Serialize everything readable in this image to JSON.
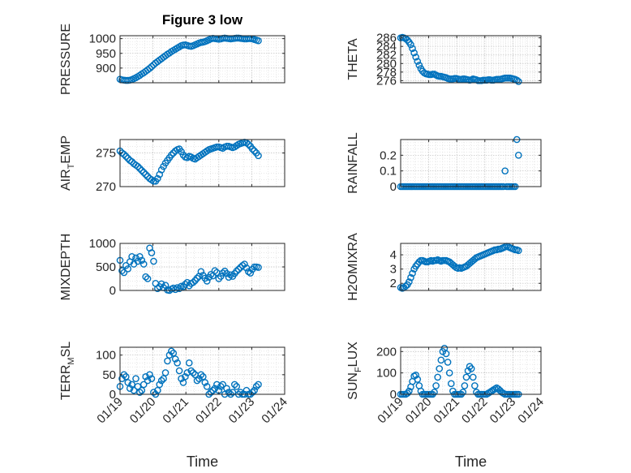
{
  "figure_title": "Figure 3 low",
  "chart_data": [
    {
      "type": "scatter",
      "id": "pressure",
      "title": "Figure 3 low",
      "ylabel": "PRESSURE",
      "ylabel_sub": "",
      "ylabel_tail": "",
      "xlim": [
        0,
        5
      ],
      "ylim": [
        850,
        1010
      ],
      "yticks": [
        900,
        950,
        1000
      ],
      "x": [
        0.0,
        0.06,
        0.12,
        0.18,
        0.24,
        0.3,
        0.36,
        0.42,
        0.48,
        0.54,
        0.6,
        0.66,
        0.72,
        0.78,
        0.84,
        0.9,
        0.96,
        1.02,
        1.08,
        1.14,
        1.2,
        1.26,
        1.32,
        1.38,
        1.44,
        1.5,
        1.56,
        1.62,
        1.68,
        1.74,
        1.8,
        1.86,
        1.92,
        1.98,
        2.04,
        2.1,
        2.16,
        2.22,
        2.28,
        2.34,
        2.4,
        2.46,
        2.52,
        2.58,
        2.64,
        2.7,
        2.76,
        2.82,
        2.88,
        2.94,
        3.0,
        3.06,
        3.12,
        3.18,
        3.24,
        3.3,
        3.36,
        3.42,
        3.48,
        3.54,
        3.6,
        3.66,
        3.72,
        3.78,
        3.84,
        3.9,
        3.96,
        4.02,
        4.08,
        4.14,
        4.2
      ],
      "y": [
        862,
        860,
        859,
        858,
        858,
        859,
        861,
        864,
        867,
        871,
        875,
        880,
        884,
        889,
        894,
        899,
        905,
        911,
        917,
        922,
        927,
        932,
        937,
        942,
        947,
        951,
        956,
        960,
        964,
        968,
        972,
        976,
        978,
        979,
        977,
        975,
        974,
        976,
        979,
        982,
        985,
        987,
        988,
        990,
        993,
        996,
        999,
        1001,
        1000,
        999,
        998,
        999,
        1001,
        1002,
        1001,
        1000,
        999,
        1000,
        1001,
        1002,
        1002,
        1001,
        1000,
        999,
        999,
        1000,
        1000,
        999,
        997,
        995,
        993
      ]
    },
    {
      "type": "scatter",
      "id": "theta",
      "title": "",
      "ylabel": "THETA",
      "ylabel_sub": "",
      "ylabel_tail": "",
      "xlim": [
        0,
        5
      ],
      "ylim": [
        275.5,
        286.5
      ],
      "yticks": [
        276,
        278,
        280,
        282,
        284,
        286
      ],
      "x": [
        0.0,
        0.06,
        0.12,
        0.18,
        0.24,
        0.3,
        0.36,
        0.42,
        0.48,
        0.54,
        0.6,
        0.66,
        0.72,
        0.78,
        0.84,
        0.9,
        0.96,
        1.02,
        1.08,
        1.14,
        1.2,
        1.26,
        1.32,
        1.38,
        1.44,
        1.5,
        1.56,
        1.62,
        1.68,
        1.74,
        1.8,
        1.86,
        1.92,
        1.98,
        2.04,
        2.1,
        2.16,
        2.22,
        2.28,
        2.34,
        2.4,
        2.46,
        2.52,
        2.58,
        2.64,
        2.7,
        2.76,
        2.82,
        2.88,
        2.94,
        3.0,
        3.06,
        3.12,
        3.18,
        3.24,
        3.3,
        3.36,
        3.42,
        3.48,
        3.54,
        3.6,
        3.66,
        3.72,
        3.78,
        3.84,
        3.9,
        3.96,
        4.02,
        4.08,
        4.14,
        4.2
      ],
      "y": [
        286.0,
        286.1,
        286.0,
        285.8,
        285.5,
        285.0,
        284.4,
        283.5,
        282.5,
        281.5,
        280.5,
        279.6,
        278.8,
        278.2,
        277.8,
        277.6,
        277.5,
        277.4,
        277.4,
        277.5,
        277.5,
        277.3,
        277.1,
        277.0,
        277.0,
        276.9,
        276.8,
        276.7,
        276.5,
        276.4,
        276.4,
        276.4,
        276.5,
        276.5,
        276.4,
        276.3,
        276.3,
        276.4,
        276.4,
        276.3,
        276.2,
        276.1,
        276.2,
        276.4,
        276.3,
        276.2,
        276.0,
        276.0,
        276.0,
        276.1,
        276.1,
        276.1,
        276.2,
        276.2,
        276.1,
        276.1,
        276.2,
        276.3,
        276.3,
        276.3,
        276.4,
        276.5,
        276.6,
        276.6,
        276.6,
        276.6,
        276.5,
        276.4,
        276.3,
        276.1,
        275.8
      ]
    },
    {
      "type": "scatter",
      "id": "air_temp",
      "title": "",
      "ylabel": "AIR",
      "ylabel_sub": "T",
      "ylabel_tail": "EMP",
      "xlim": [
        0,
        5
      ],
      "ylim": [
        270,
        277
      ],
      "yticks": [
        270,
        275
      ],
      "x": [
        0.0,
        0.06,
        0.12,
        0.18,
        0.24,
        0.3,
        0.36,
        0.42,
        0.48,
        0.54,
        0.6,
        0.66,
        0.72,
        0.78,
        0.84,
        0.9,
        0.96,
        1.02,
        1.08,
        1.14,
        1.2,
        1.26,
        1.32,
        1.38,
        1.44,
        1.5,
        1.56,
        1.62,
        1.68,
        1.74,
        1.8,
        1.86,
        1.92,
        1.98,
        2.04,
        2.1,
        2.16,
        2.22,
        2.28,
        2.34,
        2.4,
        2.46,
        2.52,
        2.58,
        2.64,
        2.7,
        2.76,
        2.82,
        2.88,
        2.94,
        3.0,
        3.06,
        3.12,
        3.18,
        3.24,
        3.3,
        3.36,
        3.42,
        3.48,
        3.54,
        3.6,
        3.66,
        3.72,
        3.78,
        3.84,
        3.9,
        3.96,
        4.02,
        4.08,
        4.14,
        4.2
      ],
      "y": [
        275.3,
        275.0,
        274.8,
        274.5,
        274.2,
        273.9,
        273.7,
        273.4,
        273.2,
        273.0,
        272.7,
        272.4,
        272.1,
        271.8,
        271.5,
        271.2,
        271.0,
        270.8,
        270.8,
        271.2,
        271.8,
        272.5,
        273.0,
        273.5,
        273.9,
        274.3,
        274.7,
        275.0,
        275.3,
        275.5,
        275.6,
        275.2,
        274.7,
        274.4,
        274.3,
        274.5,
        274.4,
        274.2,
        274.1,
        274.3,
        274.5,
        274.7,
        274.9,
        275.1,
        275.3,
        275.5,
        275.6,
        275.7,
        275.8,
        275.9,
        275.9,
        275.8,
        275.7,
        275.9,
        276.0,
        276.0,
        275.9,
        275.8,
        275.9,
        276.1,
        276.3,
        276.4,
        276.5,
        276.6,
        276.5,
        276.3,
        276.0,
        275.6,
        275.3,
        275.0,
        274.6
      ]
    },
    {
      "type": "scatter",
      "id": "rainfall",
      "title": "",
      "ylabel": "RAINFALL",
      "ylabel_sub": "",
      "ylabel_tail": "",
      "xlim": [
        0,
        5
      ],
      "ylim": [
        0,
        0.3
      ],
      "yticks": [
        0,
        0.1,
        0.2
      ],
      "x": [
        0.0,
        0.06,
        0.12,
        0.18,
        0.24,
        0.3,
        0.36,
        0.42,
        0.48,
        0.54,
        0.6,
        0.66,
        0.72,
        0.78,
        0.84,
        0.9,
        0.96,
        1.02,
        1.08,
        1.14,
        1.2,
        1.26,
        1.32,
        1.38,
        1.44,
        1.5,
        1.56,
        1.62,
        1.68,
        1.74,
        1.8,
        1.86,
        1.92,
        1.98,
        2.04,
        2.1,
        2.16,
        2.22,
        2.28,
        2.34,
        2.4,
        2.46,
        2.52,
        2.58,
        2.64,
        2.7,
        2.76,
        2.82,
        2.88,
        2.94,
        3.0,
        3.06,
        3.12,
        3.18,
        3.24,
        3.3,
        3.36,
        3.42,
        3.48,
        3.54,
        3.6,
        3.66,
        3.72,
        3.78,
        3.84,
        3.9,
        3.96,
        4.02,
        4.08,
        4.14,
        4.2
      ],
      "y": [
        0,
        0,
        0,
        0,
        0,
        0,
        0,
        0,
        0,
        0,
        0,
        0,
        0,
        0,
        0,
        0,
        0,
        0,
        0,
        0,
        0,
        0,
        0,
        0,
        0,
        0,
        0,
        0,
        0,
        0,
        0,
        0,
        0,
        0,
        0,
        0,
        0,
        0,
        0,
        0,
        0,
        0,
        0,
        0,
        0,
        0,
        0,
        0,
        0,
        0,
        0,
        0,
        0,
        0,
        0,
        0,
        0,
        0,
        0,
        0,
        0,
        0,
        0.1,
        0,
        0,
        0,
        0,
        0,
        0,
        0.3,
        0.2
      ]
    },
    {
      "type": "scatter",
      "id": "mixdepth",
      "title": "",
      "ylabel": "MIXDEPTH",
      "ylabel_sub": "",
      "ylabel_tail": "",
      "xlim": [
        0,
        5
      ],
      "ylim": [
        0,
        1000
      ],
      "yticks": [
        0,
        500,
        1000
      ],
      "x": [
        0.0,
        0.06,
        0.12,
        0.18,
        0.24,
        0.3,
        0.36,
        0.42,
        0.48,
        0.54,
        0.6,
        0.66,
        0.72,
        0.78,
        0.84,
        0.9,
        0.96,
        1.02,
        1.08,
        1.14,
        1.2,
        1.26,
        1.32,
        1.38,
        1.44,
        1.5,
        1.56,
        1.62,
        1.68,
        1.74,
        1.8,
        1.86,
        1.92,
        1.98,
        2.04,
        2.1,
        2.16,
        2.22,
        2.28,
        2.34,
        2.4,
        2.46,
        2.52,
        2.58,
        2.64,
        2.7,
        2.76,
        2.82,
        2.88,
        2.94,
        3.0,
        3.06,
        3.12,
        3.18,
        3.24,
        3.3,
        3.36,
        3.42,
        3.48,
        3.54,
        3.6,
        3.66,
        3.72,
        3.78,
        3.84,
        3.9,
        3.96,
        4.02,
        4.08,
        4.14,
        4.2
      ],
      "y": [
        640,
        420,
        380,
        530,
        460,
        610,
        720,
        560,
        690,
        620,
        720,
        640,
        560,
        290,
        250,
        900,
        800,
        620,
        150,
        40,
        80,
        140,
        60,
        110,
        10,
        0,
        30,
        50,
        20,
        60,
        40,
        90,
        80,
        130,
        170,
        100,
        150,
        170,
        210,
        260,
        300,
        400,
        320,
        260,
        200,
        280,
        340,
        310,
        420,
        380,
        250,
        300,
        370,
        410,
        360,
        280,
        330,
        300,
        360,
        410,
        450,
        490,
        530,
        560,
        480,
        400,
        370,
        450,
        500,
        500,
        490
      ]
    },
    {
      "type": "scatter",
      "id": "h2omixra",
      "title": "",
      "ylabel": "H2OMIXRA",
      "ylabel_sub": "",
      "ylabel_tail": "",
      "xlim": [
        0,
        5
      ],
      "ylim": [
        1.5,
        4.8
      ],
      "yticks": [
        2,
        3,
        4
      ],
      "x": [
        0.0,
        0.06,
        0.12,
        0.18,
        0.24,
        0.3,
        0.36,
        0.42,
        0.48,
        0.54,
        0.6,
        0.66,
        0.72,
        0.78,
        0.84,
        0.9,
        0.96,
        1.02,
        1.08,
        1.14,
        1.2,
        1.26,
        1.32,
        1.38,
        1.44,
        1.5,
        1.56,
        1.62,
        1.68,
        1.74,
        1.8,
        1.86,
        1.92,
        1.98,
        2.04,
        2.1,
        2.16,
        2.22,
        2.28,
        2.34,
        2.4,
        2.46,
        2.52,
        2.58,
        2.64,
        2.7,
        2.76,
        2.82,
        2.88,
        2.94,
        3.0,
        3.06,
        3.12,
        3.18,
        3.24,
        3.3,
        3.36,
        3.42,
        3.48,
        3.54,
        3.6,
        3.66,
        3.72,
        3.78,
        3.84,
        3.9,
        3.96,
        4.02,
        4.08,
        4.14,
        4.2
      ],
      "y": [
        1.7,
        1.65,
        1.7,
        1.8,
        1.9,
        2.1,
        2.4,
        2.7,
        3.0,
        3.2,
        3.35,
        3.5,
        3.6,
        3.6,
        3.55,
        3.5,
        3.5,
        3.55,
        3.6,
        3.55,
        3.6,
        3.6,
        3.65,
        3.6,
        3.55,
        3.6,
        3.6,
        3.6,
        3.55,
        3.5,
        3.4,
        3.3,
        3.2,
        3.1,
        3.05,
        3.1,
        3.05,
        3.1,
        3.15,
        3.2,
        3.3,
        3.4,
        3.5,
        3.6,
        3.7,
        3.8,
        3.85,
        3.9,
        3.95,
        4.0,
        4.05,
        4.1,
        4.15,
        4.2,
        4.25,
        4.3,
        4.35,
        4.35,
        4.4,
        4.4,
        4.45,
        4.5,
        4.55,
        4.6,
        4.55,
        4.5,
        4.45,
        4.4,
        4.35,
        4.35,
        4.3
      ]
    },
    {
      "type": "scatter",
      "id": "terr_msl",
      "title": "",
      "ylabel": "TERR",
      "ylabel_sub": "M",
      "ylabel_tail": "SL",
      "xlim": [
        0,
        5
      ],
      "ylim": [
        0,
        120
      ],
      "yticks": [
        0,
        50,
        100
      ],
      "xlabel": "Time",
      "x": [
        0.0,
        0.06,
        0.12,
        0.18,
        0.24,
        0.3,
        0.36,
        0.42,
        0.48,
        0.54,
        0.6,
        0.66,
        0.72,
        0.78,
        0.84,
        0.9,
        0.96,
        1.02,
        1.08,
        1.14,
        1.2,
        1.26,
        1.32,
        1.38,
        1.44,
        1.5,
        1.56,
        1.62,
        1.68,
        1.74,
        1.8,
        1.86,
        1.92,
        1.98,
        2.04,
        2.1,
        2.16,
        2.22,
        2.28,
        2.34,
        2.4,
        2.46,
        2.52,
        2.58,
        2.64,
        2.7,
        2.76,
        2.82,
        2.88,
        2.94,
        3.0,
        3.06,
        3.12,
        3.18,
        3.24,
        3.3,
        3.36,
        3.42,
        3.48,
        3.54,
        3.6,
        3.66,
        3.72,
        3.78,
        3.84,
        3.9,
        3.96,
        4.02,
        4.08,
        4.14,
        4.2
      ],
      "y": [
        20,
        40,
        50,
        45,
        30,
        15,
        25,
        10,
        40,
        20,
        5,
        10,
        25,
        45,
        35,
        50,
        40,
        5,
        0,
        10,
        25,
        35,
        40,
        55,
        85,
        100,
        110,
        105,
        90,
        80,
        60,
        40,
        30,
        45,
        55,
        80,
        60,
        55,
        50,
        35,
        40,
        50,
        45,
        30,
        20,
        0,
        5,
        10,
        15,
        25,
        10,
        20,
        25,
        0,
        15,
        5,
        0,
        5,
        25,
        20,
        0,
        5,
        0,
        0,
        10,
        0,
        0,
        5,
        10,
        20,
        25
      ]
    },
    {
      "type": "scatter",
      "id": "sun_flux",
      "title": "",
      "ylabel": "SUN",
      "ylabel_sub": "F",
      "ylabel_tail": "LUX",
      "xlim": [
        0,
        5
      ],
      "ylim": [
        0,
        220
      ],
      "yticks": [
        0,
        100,
        200
      ],
      "xlabel": "Time",
      "x": [
        0.0,
        0.06,
        0.12,
        0.18,
        0.24,
        0.3,
        0.36,
        0.42,
        0.48,
        0.54,
        0.6,
        0.66,
        0.72,
        0.78,
        0.84,
        0.9,
        0.96,
        1.02,
        1.08,
        1.14,
        1.2,
        1.26,
        1.32,
        1.38,
        1.44,
        1.5,
        1.56,
        1.62,
        1.68,
        1.74,
        1.8,
        1.86,
        1.92,
        1.98,
        2.04,
        2.1,
        2.16,
        2.22,
        2.28,
        2.34,
        2.4,
        2.46,
        2.52,
        2.58,
        2.64,
        2.7,
        2.76,
        2.82,
        2.88,
        2.94,
        3.0,
        3.06,
        3.12,
        3.18,
        3.24,
        3.3,
        3.36,
        3.42,
        3.48,
        3.54,
        3.6,
        3.66,
        3.72,
        3.78,
        3.84,
        3.9,
        3.96,
        4.02,
        4.08,
        4.14,
        4.2
      ],
      "y": [
        0,
        0,
        0,
        0,
        5,
        15,
        35,
        60,
        85,
        90,
        70,
        40,
        15,
        0,
        0,
        0,
        0,
        0,
        0,
        0,
        10,
        40,
        80,
        120,
        160,
        200,
        215,
        190,
        150,
        100,
        50,
        15,
        0,
        0,
        0,
        0,
        0,
        10,
        40,
        80,
        110,
        130,
        120,
        80,
        40,
        10,
        0,
        0,
        0,
        0,
        0,
        0,
        5,
        10,
        15,
        20,
        25,
        30,
        25,
        18,
        10,
        5,
        0,
        0,
        0,
        0,
        0,
        0,
        0,
        0,
        0
      ]
    }
  ],
  "x_ticks": [
    {
      "value": 0,
      "label": "01/19"
    },
    {
      "value": 1,
      "label": "01/20"
    },
    {
      "value": 2,
      "label": "01/21"
    },
    {
      "value": 3,
      "label": "01/22"
    },
    {
      "value": 4,
      "label": "01/23"
    },
    {
      "value": 5,
      "label": "01/24"
    }
  ],
  "x_tick_labels_on": [
    "terr_msl",
    "sun_flux"
  ],
  "marker_color": "#0072BD",
  "grid": true
}
